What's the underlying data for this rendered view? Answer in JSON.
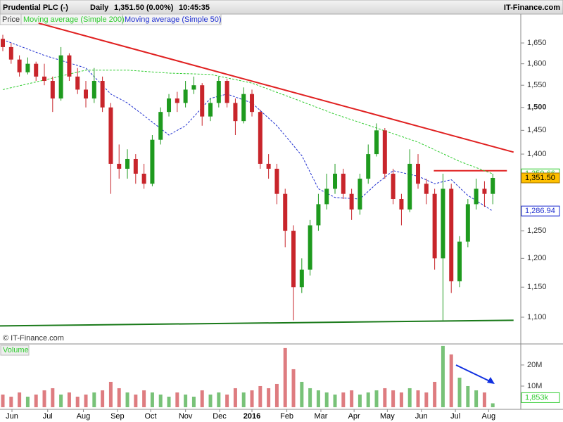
{
  "header": {
    "instrument": "Prudential PLC (-)",
    "period": "Daily",
    "price": "1,351.50 (0.00%)",
    "time": "10:45:35",
    "brand": "IT-Finance.com"
  },
  "chart_data": {
    "type": "candlestick",
    "legend": [
      "Price",
      "Moving average (Simple 200)",
      "Moving average (Simple 50)"
    ],
    "copyright": "© IT-Finance.com",
    "volume_title": "Volume",
    "log_y": true,
    "up_color": "#1e9a1e",
    "down_color": "#c8252b",
    "x": [
      0,
      1,
      2,
      3,
      4,
      5,
      6,
      7,
      8,
      9,
      10,
      11,
      12,
      13,
      14,
      15,
      16,
      17,
      18,
      19,
      20,
      21,
      22,
      23,
      24,
      25,
      26,
      27,
      28,
      29,
      30,
      31,
      32,
      33,
      34,
      35,
      36,
      37,
      38,
      39,
      40,
      41,
      42,
      43,
      44,
      45,
      46,
      47,
      48,
      49,
      50,
      51,
      52,
      53,
      54,
      55,
      56,
      57,
      58,
      59
    ],
    "open": [
      1660,
      1640,
      1610,
      1580,
      1600,
      1570,
      1560,
      1520,
      1620,
      1570,
      1540,
      1520,
      1560,
      1500,
      1380,
      1370,
      1390,
      1360,
      1340,
      1430,
      1490,
      1520,
      1510,
      1540,
      1550,
      1480,
      1510,
      1560,
      1510,
      1470,
      1530,
      1490,
      1380,
      1370,
      1320,
      1250,
      1150,
      1180,
      1260,
      1300,
      1330,
      1360,
      1320,
      1290,
      1350,
      1400,
      1450,
      1360,
      1310,
      1290,
      1380,
      1340,
      1320,
      1200,
      1330,
      1160,
      1230,
      1300,
      1330,
      1320
    ],
    "high": [
      1670,
      1650,
      1620,
      1615,
      1605,
      1600,
      1570,
      1640,
      1625,
      1590,
      1560,
      1590,
      1570,
      1510,
      1420,
      1410,
      1400,
      1380,
      1440,
      1500,
      1530,
      1535,
      1560,
      1570,
      1555,
      1520,
      1570,
      1565,
      1520,
      1545,
      1540,
      1495,
      1400,
      1380,
      1330,
      1260,
      1200,
      1270,
      1320,
      1360,
      1380,
      1370,
      1330,
      1360,
      1420,
      1465,
      1455,
      1370,
      1320,
      1410,
      1400,
      1350,
      1330,
      1360,
      1340,
      1240,
      1310,
      1350,
      1345,
      1360
    ],
    "low": [
      1630,
      1600,
      1570,
      1575,
      1560,
      1550,
      1490,
      1515,
      1560,
      1530,
      1500,
      1510,
      1490,
      1320,
      1350,
      1350,
      1340,
      1330,
      1335,
      1420,
      1480,
      1490,
      1500,
      1530,
      1460,
      1470,
      1500,
      1500,
      1440,
      1465,
      1480,
      1370,
      1350,
      1300,
      1220,
      1095,
      1140,
      1170,
      1250,
      1290,
      1320,
      1310,
      1270,
      1280,
      1340,
      1395,
      1350,
      1300,
      1260,
      1285,
      1330,
      1300,
      1180,
      1095,
      1140,
      1150,
      1220,
      1290,
      1295,
      1300
    ],
    "close": [
      1640,
      1610,
      1580,
      1600,
      1570,
      1560,
      1520,
      1620,
      1570,
      1540,
      1520,
      1560,
      1500,
      1380,
      1370,
      1390,
      1360,
      1340,
      1430,
      1490,
      1520,
      1510,
      1540,
      1550,
      1480,
      1510,
      1560,
      1510,
      1470,
      1530,
      1490,
      1380,
      1370,
      1320,
      1250,
      1150,
      1180,
      1260,
      1300,
      1330,
      1360,
      1320,
      1290,
      1350,
      1400,
      1450,
      1360,
      1310,
      1290,
      1380,
      1340,
      1320,
      1200,
      1330,
      1160,
      1230,
      1300,
      1330,
      1320,
      1351.5
    ],
    "volume": [
      6,
      5,
      7,
      5,
      6,
      8,
      9,
      6,
      7,
      5,
      6,
      7,
      8,
      12,
      9,
      7,
      6,
      8,
      7,
      6,
      5,
      7,
      6,
      5,
      8,
      6,
      7,
      6,
      9,
      7,
      8,
      10,
      9,
      11,
      28,
      18,
      12,
      9,
      8,
      7,
      6,
      7,
      8,
      6,
      7,
      8,
      9,
      8,
      7,
      9,
      8,
      7,
      12,
      29,
      25,
      14,
      10,
      8,
      7,
      1.853
    ],
    "ma": [
      {
        "name": "Moving average (Simple 200)",
        "color": "#2ecc2e",
        "x": [
          0,
          5,
          10,
          15,
          20,
          25,
          30,
          35,
          40,
          45,
          50,
          55,
          59
        ],
        "values": [
          1540,
          1562,
          1585,
          1585,
          1578,
          1575,
          1555,
          1520,
          1485,
          1455,
          1425,
          1385,
          1359.66
        ]
      },
      {
        "name": "Moving average (Simple 50)",
        "color": "#1f2fd0",
        "x": [
          0,
          5,
          10,
          13,
          15,
          18,
          20,
          22,
          25,
          27,
          30,
          33,
          36,
          38,
          40,
          43,
          45,
          47,
          50,
          52,
          54,
          56,
          59
        ],
        "values": [
          1658,
          1620,
          1590,
          1530,
          1510,
          1468,
          1440,
          1460,
          1520,
          1530,
          1510,
          1460,
          1397,
          1330,
          1313,
          1310,
          1340,
          1366,
          1355,
          1340,
          1348,
          1317,
          1286.94
        ]
      }
    ],
    "last_values": [
      {
        "value": 1359.66,
        "label": "1,359.66",
        "color": "#2ecc2e"
      },
      {
        "value": 1351.5,
        "label": "1,351.50",
        "color": "#ffc000"
      },
      {
        "value": 1286.94,
        "label": "1,286.94",
        "color": "#1f2fd0"
      }
    ],
    "trendlines": [
      {
        "x": [
          4.3,
          61.5
        ],
        "y": [
          1699,
          1404
        ],
        "color": "#e02020"
      },
      {
        "x": [
          51.9,
          60.7
        ],
        "y": [
          1366,
          1366
        ],
        "color": "#e02020"
      },
      {
        "x": [
          -0.34,
          61.5
        ],
        "y": [
          1086,
          1095
        ],
        "color": "#1a7a1a"
      }
    ],
    "xlim": [
      -0.34,
      62.37
    ],
    "ylim": [
      1058.5,
      1722
    ],
    "vlim": [
      0,
      29.3
    ],
    "xticks": [
      {
        "value": 1.1,
        "label": "Jun"
      },
      {
        "value": 5.4,
        "label": "Jul"
      },
      {
        "value": 9.7,
        "label": "Aug"
      },
      {
        "value": 13.8,
        "label": "Sep"
      },
      {
        "value": 17.8,
        "label": "Oct"
      },
      {
        "value": 22.0,
        "label": "Nov"
      },
      {
        "value": 26.1,
        "label": "Dec"
      },
      {
        "value": 30.0,
        "label": "2016"
      },
      {
        "value": 34.2,
        "label": "Feb"
      },
      {
        "value": 38.3,
        "label": "Mar"
      },
      {
        "value": 42.3,
        "label": "Apr"
      },
      {
        "value": 46.3,
        "label": "May"
      },
      {
        "value": 50.4,
        "label": "Jun"
      },
      {
        "value": 54.5,
        "label": "Jul"
      },
      {
        "value": 58.5,
        "label": "Aug"
      }
    ],
    "yticks": [
      {
        "value": 1100,
        "label": "1,100"
      },
      {
        "value": 1150,
        "label": "1,150"
      },
      {
        "value": 1200,
        "label": "1,200"
      },
      {
        "value": 1250,
        "label": "1,250"
      },
      {
        "value": 1400,
        "label": "1,400"
      },
      {
        "value": 1450,
        "label": "1,450"
      },
      {
        "value": 1500,
        "label": "1,500"
      },
      {
        "value": 1550,
        "label": "1,550"
      },
      {
        "value": 1600,
        "label": "1,600"
      },
      {
        "value": 1650,
        "label": "1,650"
      }
    ],
    "vticks": [
      {
        "value": 10,
        "label": "10M"
      },
      {
        "value": 20,
        "label": "20M"
      }
    ],
    "vlast": {
      "value": 1.853,
      "label": "1,853k",
      "color": "#2ecc2e"
    }
  }
}
